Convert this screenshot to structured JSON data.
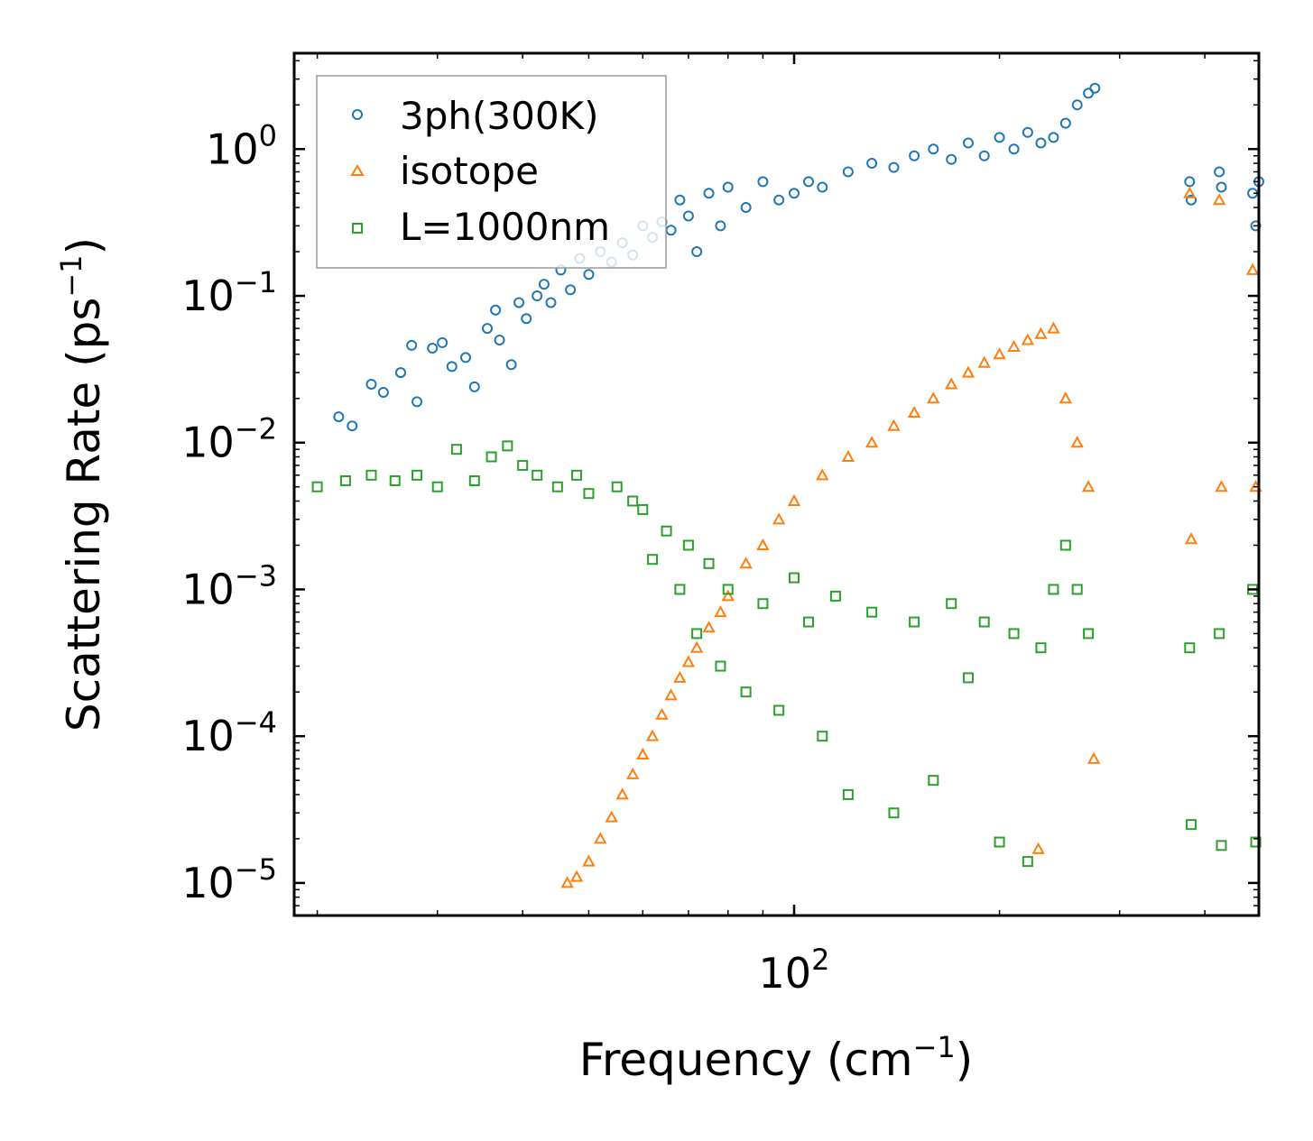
{
  "chart_data": {
    "type": "scatter",
    "title": "",
    "xlabel": "Frequency (cm",
    "xlabel_sup": "−1",
    "xlabel_end": ")",
    "ylabel": "Scattering Rate (ps",
    "ylabel_sup": "−1",
    "ylabel_end": ")",
    "xscale": "log",
    "yscale": "log",
    "xlim": [
      18.5,
      480
    ],
    "ylim": [
      6e-06,
      4.5
    ],
    "x_ticks": [
      {
        "value": 100,
        "base": "10",
        "exp": "2"
      }
    ],
    "y_ticks": [
      {
        "value": 1,
        "base": "10",
        "exp": "0"
      },
      {
        "value": 0.1,
        "base": "10",
        "exp": "−1"
      },
      {
        "value": 0.01,
        "base": "10",
        "exp": "−2"
      },
      {
        "value": 0.001,
        "base": "10",
        "exp": "−3"
      },
      {
        "value": 0.0001,
        "base": "10",
        "exp": "−4"
      },
      {
        "value": 1e-05,
        "base": "10",
        "exp": "−5"
      }
    ],
    "legend_position": "top-left",
    "series": [
      {
        "name": "3ph(300K)",
        "marker": "circle",
        "color": "#1f77b4",
        "points": [
          [
            21.5,
            0.015
          ],
          [
            22.5,
            0.013
          ],
          [
            24,
            0.025
          ],
          [
            25,
            0.022
          ],
          [
            26.5,
            0.03
          ],
          [
            27.5,
            0.046
          ],
          [
            28,
            0.019
          ],
          [
            29.5,
            0.044
          ],
          [
            30.5,
            0.048
          ],
          [
            31.5,
            0.033
          ],
          [
            33,
            0.038
          ],
          [
            34,
            0.024
          ],
          [
            35.5,
            0.06
          ],
          [
            36.5,
            0.08
          ],
          [
            37,
            0.05
          ],
          [
            38.5,
            0.034
          ],
          [
            39.5,
            0.09
          ],
          [
            40.5,
            0.07
          ],
          [
            42,
            0.1
          ],
          [
            43,
            0.12
          ],
          [
            44,
            0.09
          ],
          [
            45.5,
            0.15
          ],
          [
            47,
            0.11
          ],
          [
            48.5,
            0.18
          ],
          [
            50,
            0.14
          ],
          [
            52,
            0.2
          ],
          [
            54,
            0.17
          ],
          [
            56,
            0.23
          ],
          [
            58,
            0.19
          ],
          [
            60,
            0.3
          ],
          [
            62,
            0.25
          ],
          [
            64,
            0.32
          ],
          [
            66,
            0.28
          ],
          [
            68,
            0.45
          ],
          [
            70,
            0.35
          ],
          [
            72,
            0.2
          ],
          [
            75,
            0.5
          ],
          [
            78,
            0.3
          ],
          [
            80,
            0.55
          ],
          [
            85,
            0.4
          ],
          [
            90,
            0.6
          ],
          [
            95,
            0.45
          ],
          [
            100,
            0.5
          ],
          [
            105,
            0.6
          ],
          [
            110,
            0.55
          ],
          [
            120,
            0.7
          ],
          [
            130,
            0.8
          ],
          [
            140,
            0.75
          ],
          [
            150,
            0.9
          ],
          [
            160,
            1.0
          ],
          [
            170,
            0.85
          ],
          [
            180,
            1.1
          ],
          [
            190,
            0.9
          ],
          [
            200,
            1.2
          ],
          [
            210,
            1.0
          ],
          [
            220,
            1.3
          ],
          [
            230,
            1.1
          ],
          [
            240,
            1.2
          ],
          [
            250,
            1.5
          ],
          [
            260,
            2.0
          ],
          [
            270,
            2.4
          ],
          [
            276,
            2.6
          ],
          [
            380,
            0.6
          ],
          [
            382,
            0.45
          ],
          [
            420,
            0.7
          ],
          [
            423,
            0.55
          ],
          [
            470,
            0.5
          ],
          [
            475,
            0.3
          ],
          [
            480,
            0.6
          ]
        ]
      },
      {
        "name": "isotope",
        "marker": "triangle",
        "color": "#ff7f0e",
        "points": [
          [
            46.5,
            1e-05
          ],
          [
            48,
            1.1e-05
          ],
          [
            50,
            1.4e-05
          ],
          [
            52,
            2e-05
          ],
          [
            54,
            2.8e-05
          ],
          [
            56,
            4e-05
          ],
          [
            58,
            5.5e-05
          ],
          [
            60,
            7.5e-05
          ],
          [
            62,
            0.0001
          ],
          [
            64,
            0.00014
          ],
          [
            66,
            0.00019
          ],
          [
            68,
            0.00025
          ],
          [
            70,
            0.00032
          ],
          [
            72,
            0.0004
          ],
          [
            75,
            0.00055
          ],
          [
            78,
            0.0007
          ],
          [
            80,
            0.0009
          ],
          [
            85,
            0.0015
          ],
          [
            90,
            0.002
          ],
          [
            95,
            0.003
          ],
          [
            100,
            0.004
          ],
          [
            110,
            0.006
          ],
          [
            120,
            0.008
          ],
          [
            130,
            0.01
          ],
          [
            140,
            0.013
          ],
          [
            150,
            0.016
          ],
          [
            160,
            0.02
          ],
          [
            170,
            0.025
          ],
          [
            180,
            0.03
          ],
          [
            190,
            0.035
          ],
          [
            200,
            0.04
          ],
          [
            210,
            0.045
          ],
          [
            220,
            0.05
          ],
          [
            230,
            0.055
          ],
          [
            240,
            0.06
          ],
          [
            250,
            0.02
          ],
          [
            260,
            0.01
          ],
          [
            270,
            0.005
          ],
          [
            275,
            7e-05
          ],
          [
            228,
            1.7e-05
          ],
          [
            380,
            0.5
          ],
          [
            382,
            0.0022
          ],
          [
            420,
            0.45
          ],
          [
            423,
            0.005
          ],
          [
            470,
            0.15
          ],
          [
            475,
            0.005
          ]
        ]
      },
      {
        "name": "L=1000nm",
        "marker": "square",
        "color": "#2ca02c",
        "points": [
          [
            20,
            0.005
          ],
          [
            22,
            0.0055
          ],
          [
            24,
            0.006
          ],
          [
            26,
            0.0055
          ],
          [
            28,
            0.006
          ],
          [
            30,
            0.005
          ],
          [
            32,
            0.009
          ],
          [
            34,
            0.0055
          ],
          [
            36,
            0.008
          ],
          [
            38,
            0.0095
          ],
          [
            40,
            0.007
          ],
          [
            42,
            0.006
          ],
          [
            45,
            0.005
          ],
          [
            48,
            0.006
          ],
          [
            50,
            0.0045
          ],
          [
            55,
            0.005
          ],
          [
            58,
            0.004
          ],
          [
            60,
            0.0035
          ],
          [
            62,
            0.0016
          ],
          [
            65,
            0.0025
          ],
          [
            68,
            0.001
          ],
          [
            70,
            0.002
          ],
          [
            72,
            0.0005
          ],
          [
            75,
            0.0015
          ],
          [
            78,
            0.0003
          ],
          [
            80,
            0.001
          ],
          [
            85,
            0.0002
          ],
          [
            90,
            0.0008
          ],
          [
            95,
            0.00015
          ],
          [
            100,
            0.0012
          ],
          [
            105,
            0.0006
          ],
          [
            110,
            0.0001
          ],
          [
            115,
            0.0009
          ],
          [
            120,
            4e-05
          ],
          [
            130,
            0.0007
          ],
          [
            140,
            3e-05
          ],
          [
            150,
            0.0006
          ],
          [
            160,
            5e-05
          ],
          [
            170,
            0.0008
          ],
          [
            180,
            0.00025
          ],
          [
            190,
            0.0006
          ],
          [
            200,
            1.9e-05
          ],
          [
            210,
            0.0005
          ],
          [
            220,
            1.4e-05
          ],
          [
            230,
            0.0004
          ],
          [
            240,
            0.001
          ],
          [
            250,
            0.002
          ],
          [
            260,
            0.001
          ],
          [
            270,
            0.0005
          ],
          [
            380,
            0.0004
          ],
          [
            382,
            2.5e-05
          ],
          [
            420,
            0.0005
          ],
          [
            423,
            1.8e-05
          ],
          [
            470,
            0.001
          ],
          [
            475,
            1.9e-05
          ]
        ]
      }
    ]
  }
}
